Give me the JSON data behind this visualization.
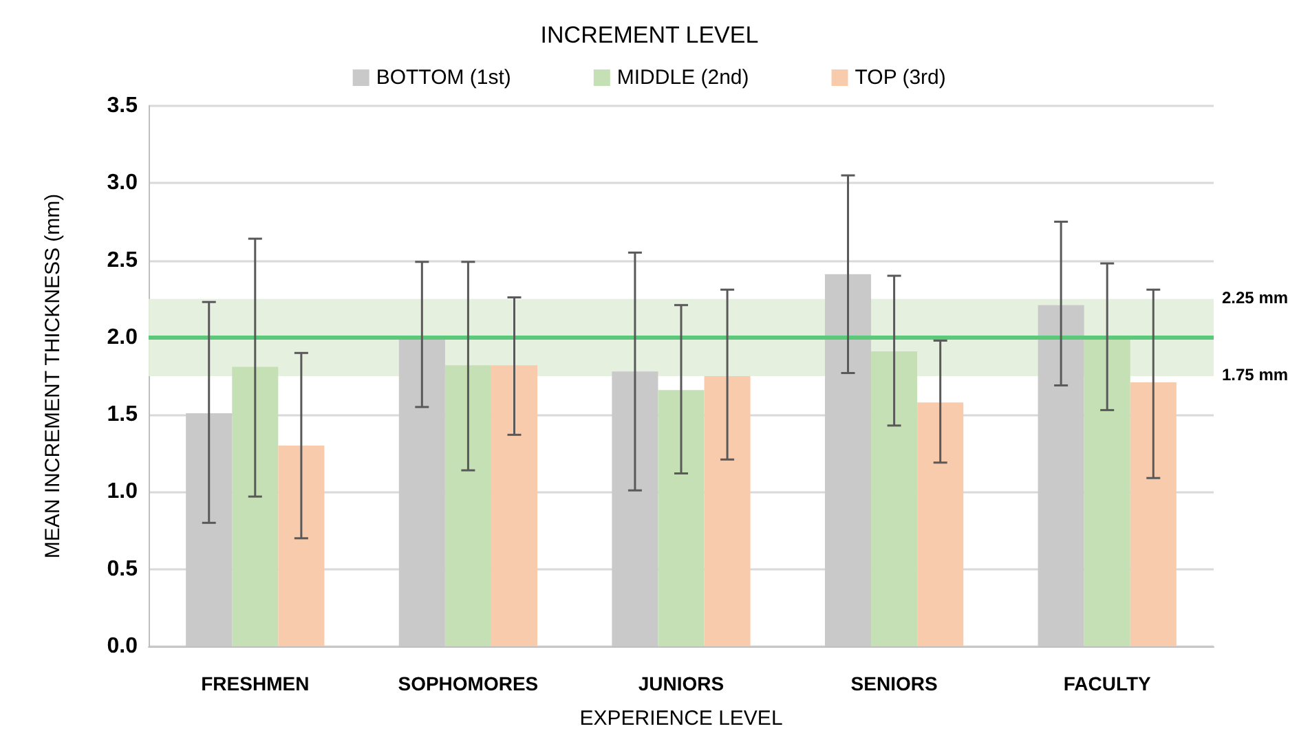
{
  "chart_data": {
    "type": "bar",
    "legend_title": "INCREMENT LEVEL",
    "xlabel": "EXPERIENCE LEVEL",
    "ylabel": "MEAN INCREMENT THICKNESS (mm)",
    "categories": [
      "FRESHMEN",
      "SOPHOMORES",
      "JUNIORS",
      "SENIORS",
      "FACULTY"
    ],
    "series": [
      {
        "name": "BOTTOM (1st)",
        "color": "#c9c9c9",
        "values": [
          1.51,
          2.0,
          1.78,
          2.41,
          2.21
        ],
        "errors": [
          [
            0.8,
            2.23
          ],
          [
            1.55,
            2.49
          ],
          [
            1.01,
            2.55
          ],
          [
            1.77,
            3.05
          ],
          [
            1.69,
            2.75
          ]
        ]
      },
      {
        "name": "MIDDLE (2nd)",
        "color": "#c5e0b4",
        "values": [
          1.81,
          1.82,
          1.66,
          1.91,
          2.0
        ],
        "errors": [
          [
            0.97,
            2.64
          ],
          [
            1.14,
            2.49
          ],
          [
            1.12,
            2.21
          ],
          [
            1.43,
            2.4
          ],
          [
            1.53,
            2.48
          ]
        ]
      },
      {
        "name": "TOP (3rd)",
        "color": "#f8cbad",
        "values": [
          1.3,
          1.82,
          1.75,
          1.58,
          1.71
        ],
        "errors": [
          [
            0.7,
            1.9
          ],
          [
            1.37,
            2.26
          ],
          [
            1.21,
            2.31
          ],
          [
            1.19,
            1.98
          ],
          [
            1.09,
            2.31
          ]
        ]
      }
    ],
    "ylim": [
      0,
      3.5
    ],
    "yticks": [
      {
        "value": 0,
        "label": "0.0"
      },
      {
        "value": 0.5,
        "label": "0.5"
      },
      {
        "value": 1,
        "label": "1.0"
      },
      {
        "value": 1.5,
        "label": "1.5"
      },
      {
        "value": 2,
        "label": "2.0"
      },
      {
        "value": 2.5,
        "label": "2.5"
      },
      {
        "value": 3,
        "label": "3.0"
      },
      {
        "value": 3.5,
        "label": "3.5"
      }
    ],
    "ref_lines": [
      {
        "axis": "y",
        "value": 2.0,
        "color": "#5cc87a"
      }
    ],
    "bands": [
      {
        "axis": "y",
        "from": 1.75,
        "to": 2.25,
        "color": "#e2efda"
      }
    ],
    "annotations": [
      "2.25 mm",
      "1.75 mm"
    ],
    "grid": "y",
    "legend": "top"
  }
}
